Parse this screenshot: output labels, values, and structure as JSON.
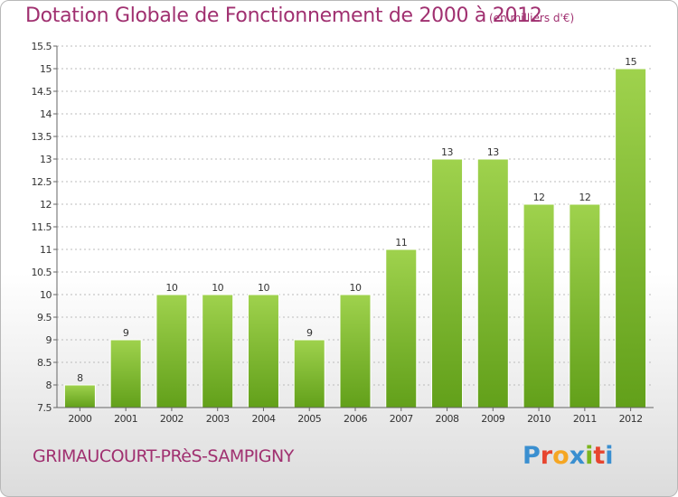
{
  "header": {
    "title": "Dotation Globale de Fonctionnement de 2000 à 2012",
    "subtitle": "(en milliers d'€)"
  },
  "footer": {
    "commune": "GRIMAUCOURT-PRèS-SAMPIGNY",
    "logo": "Proxiti",
    "logo_colors": [
      "#3a8fd0",
      "#e7452f",
      "#f5a623",
      "#3a8fd0",
      "#7bb51e",
      "#e7452f",
      "#3a8fd0"
    ]
  },
  "colors": {
    "bar_light": "#9fd24d",
    "bar_dark": "#62a01a",
    "grid": "#bbbbbb",
    "text": "#333333",
    "title": "#a03070"
  },
  "chart_data": {
    "type": "bar",
    "title": "Dotation Globale de Fonctionnement de 2000 à 2012",
    "subtitle": "(en milliers d'€)",
    "categories": [
      "2000",
      "2001",
      "2002",
      "2003",
      "2004",
      "2005",
      "2006",
      "2007",
      "2008",
      "2009",
      "2010",
      "2011",
      "2012"
    ],
    "values": [
      8,
      9,
      10,
      10,
      10,
      9,
      10,
      11,
      13,
      13,
      12,
      12,
      15
    ],
    "data_labels": [
      "8",
      "9",
      "10",
      "10",
      "10",
      "9",
      "10",
      "11",
      "13",
      "13",
      "12",
      "12",
      "15"
    ],
    "ylim": [
      7.5,
      15.5
    ],
    "yticks": [
      "7.5",
      "8",
      "8.5",
      "9",
      "9.5",
      "10",
      "10.5",
      "11",
      "11.5",
      "12",
      "12.5",
      "13",
      "13.5",
      "14",
      "14.5",
      "15",
      "15.5"
    ],
    "grid": true
  }
}
